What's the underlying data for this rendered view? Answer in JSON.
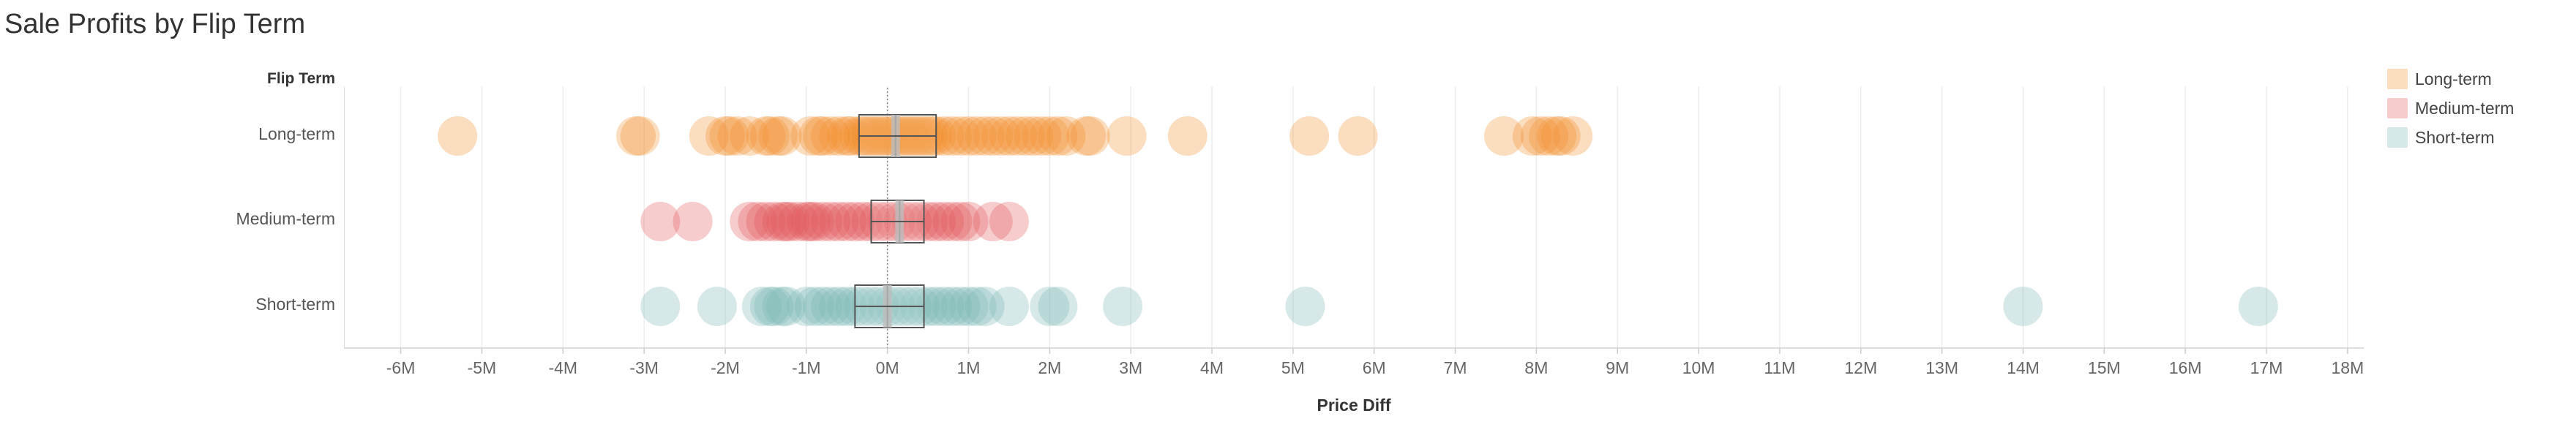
{
  "page": {
    "title": "Sale Profits by Flip Term",
    "row_header": "Flip Term"
  },
  "chart_data": {
    "type": "scatter",
    "title": "Sale Profits by Flip Term",
    "xlabel": "Price Diff",
    "ylabel": "Flip Term",
    "xlim": [
      -6.7,
      18.2
    ],
    "x_ticks": [
      -6,
      -5,
      -4,
      -3,
      -2,
      -1,
      0,
      1,
      2,
      3,
      4,
      5,
      6,
      7,
      8,
      9,
      10,
      11,
      12,
      13,
      14,
      15,
      16,
      17,
      18
    ],
    "x_tick_labels": [
      "-6M",
      "-5M",
      "-4M",
      "-3M",
      "-2M",
      "-1M",
      "0M",
      "1M",
      "2M",
      "3M",
      "4M",
      "5M",
      "6M",
      "7M",
      "8M",
      "9M",
      "10M",
      "11M",
      "12M",
      "13M",
      "14M",
      "15M",
      "16M",
      "17M",
      "18M"
    ],
    "x_units": "millions",
    "reference_line_x": 0,
    "grid": true,
    "legend_position": "top-right",
    "categories": [
      "Long-term",
      "Medium-term",
      "Short-term"
    ],
    "series": [
      {
        "name": "Long-term",
        "color": "#F28E2B",
        "values": [
          -5.3,
          -3.1,
          -3.05,
          -2.2,
          -2.0,
          -1.95,
          -1.85,
          -1.7,
          -1.5,
          -1.45,
          -1.35,
          -1.3,
          -0.95,
          -0.85,
          -0.8,
          -0.7,
          -0.6,
          -0.5,
          -0.45,
          -0.35,
          -0.3,
          -0.25,
          -0.2,
          -0.15,
          -0.1,
          -0.05,
          0.0,
          0.05,
          0.1,
          0.15,
          0.2,
          0.25,
          0.3,
          0.35,
          0.4,
          0.45,
          0.5,
          0.55,
          0.6,
          0.7,
          0.8,
          0.9,
          1.0,
          1.1,
          1.2,
          1.3,
          1.4,
          1.5,
          1.6,
          1.7,
          1.8,
          1.9,
          2.0,
          2.1,
          2.2,
          2.45,
          2.5,
          2.95,
          3.7,
          5.2,
          5.8,
          7.6,
          7.95,
          8.05,
          8.15,
          8.25,
          8.3,
          8.45
        ],
        "box": {
          "q1": -0.35,
          "median": 0.1,
          "q3": 0.6
        }
      },
      {
        "name": "Medium-term",
        "color": "#E15759",
        "values": [
          -2.8,
          -2.4,
          -1.7,
          -1.6,
          -1.5,
          -1.4,
          -1.3,
          -1.25,
          -1.2,
          -1.1,
          -1.0,
          -0.95,
          -0.9,
          -0.8,
          -0.7,
          -0.6,
          -0.5,
          -0.4,
          -0.3,
          -0.2,
          -0.1,
          0.0,
          0.1,
          0.2,
          0.3,
          0.4,
          0.5,
          0.6,
          0.7,
          0.8,
          0.9,
          1.0,
          1.3,
          1.5
        ],
        "box": {
          "q1": -0.2,
          "median": 0.15,
          "q3": 0.45
        }
      },
      {
        "name": "Short-term",
        "color": "#76B7B2",
        "values": [
          -2.8,
          -2.1,
          -1.55,
          -1.45,
          -1.4,
          -1.3,
          -1.25,
          -1.0,
          -0.9,
          -0.8,
          -0.7,
          -0.6,
          -0.5,
          -0.4,
          -0.3,
          -0.2,
          -0.1,
          0.0,
          0.1,
          0.2,
          0.3,
          0.4,
          0.5,
          0.6,
          0.7,
          0.8,
          0.9,
          1.0,
          1.1,
          1.2,
          1.5,
          2.0,
          2.1,
          2.9,
          5.15,
          14.0,
          16.9
        ],
        "box": {
          "q1": -0.4,
          "median": 0.0,
          "q3": 0.45
        }
      }
    ]
  }
}
